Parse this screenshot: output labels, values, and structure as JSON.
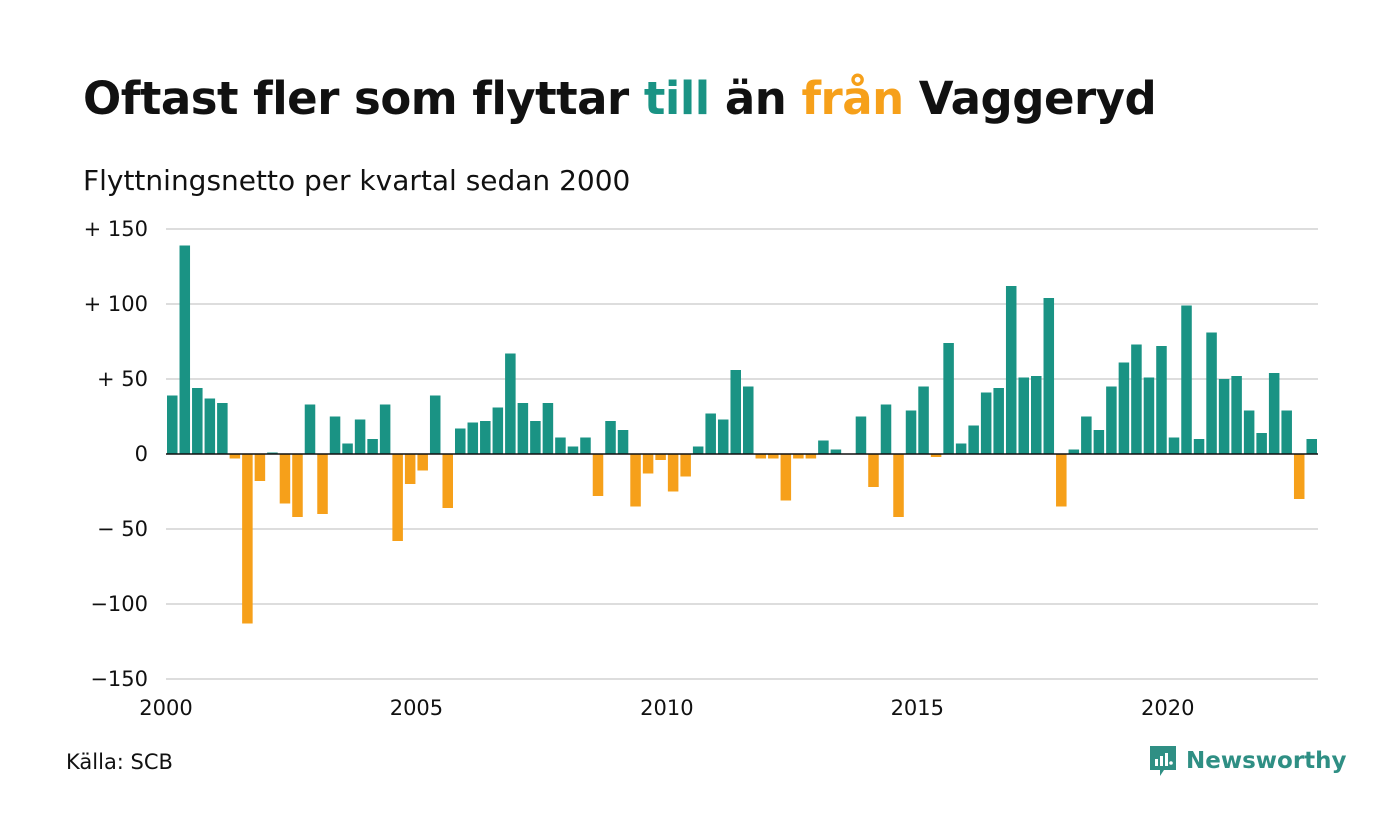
{
  "title": {
    "part1": "Oftast fler som flyttar ",
    "till": "till",
    "part2": " än ",
    "fran": "från",
    "part3": " Vaggeryd"
  },
  "subtitle": "Flyttningsnetto per kvartal sedan 2000",
  "source": "Källa: SCB",
  "brand": {
    "name": "Newsworthy",
    "icon": "newsworthy-logo-icon"
  },
  "colors": {
    "positive": "#1a9384",
    "negative": "#f6a01a",
    "grid": "#dddddd",
    "text": "#111111"
  },
  "chart_data": {
    "type": "bar",
    "x_start": 2000,
    "x_end": 2023,
    "period": "quarter",
    "ylim": [
      -150,
      150
    ],
    "y_ticks": [
      {
        "value": 150,
        "label": "+ 150"
      },
      {
        "value": 100,
        "label": "+ 100"
      },
      {
        "value": 50,
        "label": "+  50"
      },
      {
        "value": 0,
        "label": "0"
      },
      {
        "value": -50,
        "label": "− 50"
      },
      {
        "value": -100,
        "label": "−100"
      },
      {
        "value": -150,
        "label": "−150"
      }
    ],
    "x_ticks": [
      {
        "value": 2000,
        "label": "2000"
      },
      {
        "value": 2005,
        "label": "2005"
      },
      {
        "value": 2010,
        "label": "2010"
      },
      {
        "value": 2015,
        "label": "2015"
      },
      {
        "value": 2020,
        "label": "2020"
      }
    ],
    "grid": true,
    "values": [
      39,
      139,
      44,
      37,
      34,
      -3,
      -113,
      -18,
      1,
      -33,
      -42,
      33,
      -40,
      25,
      7,
      23,
      10,
      33,
      -58,
      -20,
      -11,
      39,
      -36,
      17,
      21,
      22,
      31,
      67,
      34,
      22,
      34,
      11,
      5,
      11,
      -28,
      22,
      16,
      -35,
      -13,
      -4,
      -25,
      -15,
      5,
      27,
      23,
      56,
      45,
      -3,
      -3,
      -31,
      -3,
      -3,
      9,
      3,
      0,
      25,
      -22,
      33,
      -42,
      29,
      45,
      -2,
      74,
      7,
      19,
      41,
      44,
      112,
      51,
      52,
      104,
      -35,
      3,
      25,
      16,
      45,
      61,
      73,
      51,
      72,
      11,
      99,
      10,
      81,
      50,
      52,
      29,
      14,
      54,
      29,
      -30,
      10
    ]
  }
}
